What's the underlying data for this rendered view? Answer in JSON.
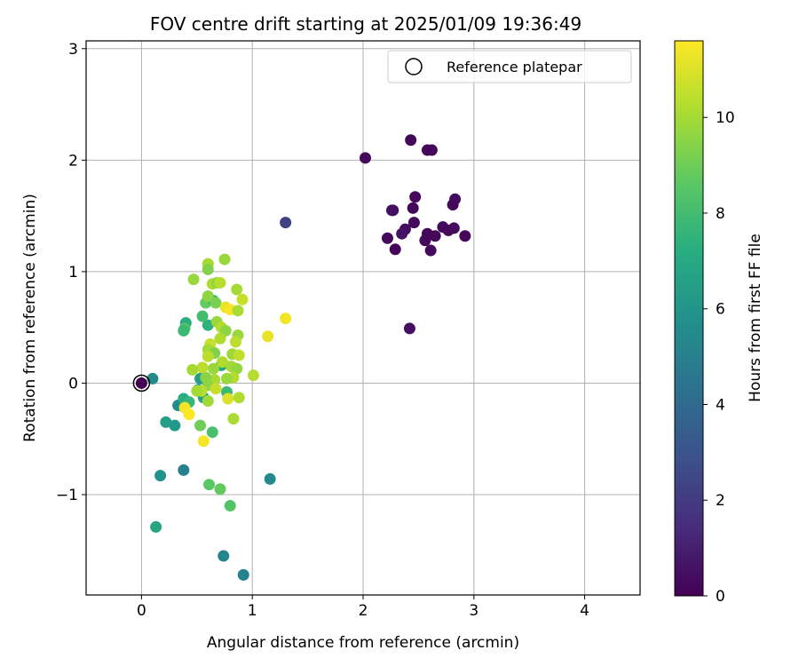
{
  "chart_data": {
    "type": "scatter",
    "title": "FOV centre drift starting at 2025/01/09 19:36:49",
    "xlabel": "Angular distance from reference (arcmin)",
    "ylabel": "Rotation from reference (arcmin)",
    "xlim": [
      -0.5,
      4.5
    ],
    "ylim": [
      -1.9,
      3.07
    ],
    "xticks": [
      0,
      1,
      2,
      3,
      4
    ],
    "yticks": [
      -1,
      0,
      1,
      2,
      3
    ],
    "xtick_labels": [
      "0",
      "1",
      "2",
      "3",
      "4"
    ],
    "ytick_labels": [
      "−1",
      "0",
      "1",
      "2",
      "3"
    ],
    "grid": true,
    "legend": {
      "placement": "top-right",
      "entries": [
        "Reference platepar"
      ]
    },
    "reference_point": {
      "x": 0,
      "y": 0,
      "label": "Reference platepar"
    },
    "colorbar": {
      "label": "Hours from first FF file",
      "colormap": "viridis",
      "range": [
        0,
        11.6
      ],
      "ticks": [
        0,
        2,
        4,
        6,
        8,
        10
      ],
      "tick_labels": [
        "0",
        "2",
        "4",
        "6",
        "8",
        "10"
      ]
    },
    "points": [
      {
        "x": 0.0,
        "y": 0.0,
        "h": 0
      },
      {
        "x": 2.02,
        "y": 2.02,
        "h": 0.3
      },
      {
        "x": 2.43,
        "y": 2.18,
        "h": 0.2
      },
      {
        "x": 2.58,
        "y": 2.09,
        "h": 0.3
      },
      {
        "x": 2.62,
        "y": 2.09,
        "h": 0.2
      },
      {
        "x": 2.26,
        "y": 1.55,
        "h": 0.8
      },
      {
        "x": 2.27,
        "y": 1.55,
        "h": 0.5
      },
      {
        "x": 2.47,
        "y": 1.67,
        "h": 0.3
      },
      {
        "x": 2.45,
        "y": 1.57,
        "h": 0.2
      },
      {
        "x": 2.46,
        "y": 1.44,
        "h": 0.3
      },
      {
        "x": 2.83,
        "y": 1.65,
        "h": 0.4
      },
      {
        "x": 2.81,
        "y": 1.6,
        "h": 0.2
      },
      {
        "x": 2.38,
        "y": 1.38,
        "h": 0.4
      },
      {
        "x": 2.35,
        "y": 1.34,
        "h": 0.6
      },
      {
        "x": 2.22,
        "y": 1.3,
        "h": 0.3
      },
      {
        "x": 2.29,
        "y": 1.2,
        "h": 0.2
      },
      {
        "x": 2.56,
        "y": 1.28,
        "h": 0.3
      },
      {
        "x": 2.58,
        "y": 1.34,
        "h": 0.2
      },
      {
        "x": 2.61,
        "y": 1.19,
        "h": 0.3
      },
      {
        "x": 2.65,
        "y": 1.32,
        "h": 0.2
      },
      {
        "x": 2.72,
        "y": 1.4,
        "h": 0.3
      },
      {
        "x": 2.77,
        "y": 1.37,
        "h": 0.2
      },
      {
        "x": 2.82,
        "y": 1.39,
        "h": 0.3
      },
      {
        "x": 2.92,
        "y": 1.32,
        "h": 0.2
      },
      {
        "x": 2.42,
        "y": 0.49,
        "h": 0.5
      },
      {
        "x": 1.3,
        "y": 1.44,
        "h": 2.2
      },
      {
        "x": 0.1,
        "y": 0.04,
        "h": 5.5
      },
      {
        "x": 0.17,
        "y": -0.83,
        "h": 5.8
      },
      {
        "x": 0.38,
        "y": -0.78,
        "h": 5.0
      },
      {
        "x": 0.13,
        "y": -1.29,
        "h": 6.8
      },
      {
        "x": 0.22,
        "y": -0.35,
        "h": 6.5
      },
      {
        "x": 0.3,
        "y": -0.38,
        "h": 6.2
      },
      {
        "x": 0.33,
        "y": -0.2,
        "h": 5.6
      },
      {
        "x": 1.16,
        "y": -0.86,
        "h": 5.4
      },
      {
        "x": 0.74,
        "y": -1.55,
        "h": 5.2
      },
      {
        "x": 0.92,
        "y": -1.72,
        "h": 5.0
      },
      {
        "x": 0.4,
        "y": 0.54,
        "h": 7.2
      },
      {
        "x": 0.39,
        "y": 0.49,
        "h": 8.3
      },
      {
        "x": 0.38,
        "y": 0.47,
        "h": 7.8
      },
      {
        "x": 0.6,
        "y": 0.52,
        "h": 7.4
      },
      {
        "x": 0.55,
        "y": 0.6,
        "h": 8.0
      },
      {
        "x": 0.58,
        "y": 0.72,
        "h": 8.8
      },
      {
        "x": 0.65,
        "y": 0.74,
        "h": 7.6
      },
      {
        "x": 0.62,
        "y": 0.3,
        "h": 6.0
      },
      {
        "x": 0.53,
        "y": 0.04,
        "h": 6.4
      },
      {
        "x": 0.72,
        "y": 0.16,
        "h": 6.8
      },
      {
        "x": 0.38,
        "y": -0.14,
        "h": 7.2
      },
      {
        "x": 0.43,
        "y": -0.17,
        "h": 7.6
      },
      {
        "x": 0.51,
        "y": -0.06,
        "h": 7.0
      },
      {
        "x": 0.56,
        "y": -0.13,
        "h": 6.6
      },
      {
        "x": 0.64,
        "y": -0.44,
        "h": 8.2
      },
      {
        "x": 0.53,
        "y": -0.38,
        "h": 9.0
      },
      {
        "x": 0.77,
        "y": -0.08,
        "h": 7.8
      },
      {
        "x": 0.61,
        "y": -0.91,
        "h": 8.6
      },
      {
        "x": 0.71,
        "y": -0.95,
        "h": 8.8
      },
      {
        "x": 0.8,
        "y": -1.1,
        "h": 8.4
      },
      {
        "x": 0.6,
        "y": 1.07,
        "h": 10.0
      },
      {
        "x": 0.75,
        "y": 1.11,
        "h": 9.8
      },
      {
        "x": 0.6,
        "y": 1.02,
        "h": 9.4
      },
      {
        "x": 0.47,
        "y": 0.93,
        "h": 9.8
      },
      {
        "x": 0.64,
        "y": 0.89,
        "h": 10.2
      },
      {
        "x": 0.68,
        "y": 0.9,
        "h": 9.6
      },
      {
        "x": 0.71,
        "y": 0.9,
        "h": 10.4
      },
      {
        "x": 0.6,
        "y": 0.78,
        "h": 9.6
      },
      {
        "x": 0.86,
        "y": 0.84,
        "h": 10.0
      },
      {
        "x": 0.91,
        "y": 0.75,
        "h": 10.6
      },
      {
        "x": 0.67,
        "y": 0.72,
        "h": 9.2
      },
      {
        "x": 0.76,
        "y": 0.68,
        "h": 11.2
      },
      {
        "x": 0.8,
        "y": 0.66,
        "h": 11.5
      },
      {
        "x": 0.87,
        "y": 0.65,
        "h": 10.1
      },
      {
        "x": 0.68,
        "y": 0.55,
        "h": 9.8
      },
      {
        "x": 0.72,
        "y": 0.5,
        "h": 10.3
      },
      {
        "x": 0.76,
        "y": 0.47,
        "h": 9.6
      },
      {
        "x": 0.71,
        "y": 0.4,
        "h": 10.2
      },
      {
        "x": 0.62,
        "y": 0.35,
        "h": 10.6
      },
      {
        "x": 0.6,
        "y": 0.3,
        "h": 10.0
      },
      {
        "x": 0.66,
        "y": 0.27,
        "h": 9.4
      },
      {
        "x": 0.87,
        "y": 0.43,
        "h": 9.8
      },
      {
        "x": 0.85,
        "y": 0.37,
        "h": 10.4
      },
      {
        "x": 0.73,
        "y": 0.19,
        "h": 10.2
      },
      {
        "x": 0.65,
        "y": 0.13,
        "h": 9.8
      },
      {
        "x": 0.6,
        "y": 0.24,
        "h": 10.4
      },
      {
        "x": 0.82,
        "y": 0.26,
        "h": 9.9
      },
      {
        "x": 0.88,
        "y": 0.25,
        "h": 10.5
      },
      {
        "x": 0.81,
        "y": 0.15,
        "h": 10.0
      },
      {
        "x": 0.86,
        "y": 0.13,
        "h": 9.7
      },
      {
        "x": 0.83,
        "y": 0.05,
        "h": 10.3
      },
      {
        "x": 0.77,
        "y": 0.04,
        "h": 9.8
      },
      {
        "x": 0.66,
        "y": 0.03,
        "h": 10.1
      },
      {
        "x": 0.58,
        "y": 0.05,
        "h": 9.5
      },
      {
        "x": 0.55,
        "y": 0.14,
        "h": 10.4
      },
      {
        "x": 0.46,
        "y": 0.12,
        "h": 10.0
      },
      {
        "x": 0.6,
        "y": -0.02,
        "h": 9.6
      },
      {
        "x": 0.54,
        "y": -0.07,
        "h": 10.4
      },
      {
        "x": 0.5,
        "y": -0.07,
        "h": 10.0
      },
      {
        "x": 0.67,
        "y": -0.05,
        "h": 10.6
      },
      {
        "x": 0.78,
        "y": -0.14,
        "h": 11.0
      },
      {
        "x": 0.88,
        "y": -0.13,
        "h": 10.2
      },
      {
        "x": 0.6,
        "y": -0.16,
        "h": 9.9
      },
      {
        "x": 0.83,
        "y": -0.32,
        "h": 10.1
      },
      {
        "x": 1.01,
        "y": 0.07,
        "h": 10.3
      },
      {
        "x": 1.14,
        "y": 0.42,
        "h": 11.2
      },
      {
        "x": 1.3,
        "y": 0.58,
        "h": 11.4
      },
      {
        "x": 0.39,
        "y": -0.22,
        "h": 11.4
      },
      {
        "x": 0.43,
        "y": -0.28,
        "h": 11.6
      },
      {
        "x": 0.56,
        "y": -0.52,
        "h": 11.5
      }
    ]
  }
}
